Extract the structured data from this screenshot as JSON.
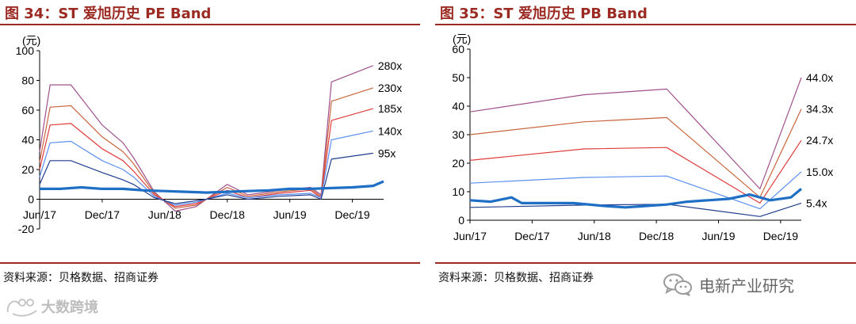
{
  "left_panel": {
    "title": "图 34：ST 爱旭历史 PE Band",
    "source": "资料来源：贝格数据、招商证券"
  },
  "right_panel": {
    "title": "图 35：ST 爱旭历史 PB Band",
    "source": "资料来源：贝格数据、招商证券"
  },
  "wechat": {
    "name": "电新产业研究",
    "icon": "wechat-logo-icon"
  },
  "watermark": {
    "text": "大数跨境",
    "icon": "watermark-logo-icon"
  },
  "colors": {
    "title": "#9b2a22",
    "price": "#1f6fc5",
    "band_dark_blue": "#1f3c8f",
    "band_light_blue": "#5b8ff0",
    "band_red": "#e03c3c",
    "band_orange": "#c8643c",
    "band_purple": "#a0508c"
  },
  "chart_data": [
    {
      "type": "line",
      "unit": "(元)",
      "ylim": [
        -20,
        100
      ],
      "yticks": [
        -20,
        0,
        20,
        40,
        60,
        80,
        100
      ],
      "xlim": [
        "2017-06",
        "2020-03"
      ],
      "xticks": [
        "Jun/17",
        "Dec/17",
        "Jun/18",
        "Dec/18",
        "Jun/19",
        "Dec/19"
      ],
      "grid": false,
      "legend": "right-end labels",
      "series": [
        {
          "name": "280x",
          "color": "#a0508c",
          "points": [
            [
              "2017-06",
              32
            ],
            [
              "2017-07",
              77
            ],
            [
              "2017-09",
              77
            ],
            [
              "2017-12",
              50
            ],
            [
              "2018-02",
              38
            ],
            [
              "2018-03",
              28
            ],
            [
              "2018-05",
              5
            ],
            [
              "2018-07",
              -8
            ],
            [
              "2018-09",
              -5
            ],
            [
              "2018-10",
              0
            ],
            [
              "2018-12",
              10
            ],
            [
              "2019-02",
              3
            ],
            [
              "2019-05",
              6
            ],
            [
              "2019-08",
              8
            ],
            [
              "2019-09",
              3
            ],
            [
              "2019-10",
              79
            ],
            [
              "2020-02",
              90
            ]
          ]
        },
        {
          "name": "230x",
          "color": "#c8643c",
          "points": [
            [
              "2017-06",
              25
            ],
            [
              "2017-07",
              62
            ],
            [
              "2017-09",
              63
            ],
            [
              "2017-12",
              42
            ],
            [
              "2018-02",
              32
            ],
            [
              "2018-03",
              24
            ],
            [
              "2018-05",
              4
            ],
            [
              "2018-07",
              -6
            ],
            [
              "2018-09",
              -4
            ],
            [
              "2018-10",
              0
            ],
            [
              "2018-12",
              8
            ],
            [
              "2019-02",
              2
            ],
            [
              "2019-05",
              5
            ],
            [
              "2019-08",
              7
            ],
            [
              "2019-09",
              2
            ],
            [
              "2019-10",
              66
            ],
            [
              "2020-02",
              75
            ]
          ]
        },
        {
          "name": "185x",
          "color": "#e03c3c",
          "points": [
            [
              "2017-06",
              20
            ],
            [
              "2017-07",
              50
            ],
            [
              "2017-09",
              51
            ],
            [
              "2017-12",
              34
            ],
            [
              "2018-02",
              26
            ],
            [
              "2018-03",
              19
            ],
            [
              "2018-05",
              3
            ],
            [
              "2018-07",
              -5
            ],
            [
              "2018-09",
              -3
            ],
            [
              "2018-10",
              0
            ],
            [
              "2018-12",
              6
            ],
            [
              "2019-02",
              1
            ],
            [
              "2019-05",
              4
            ],
            [
              "2019-08",
              6
            ],
            [
              "2019-09",
              1
            ],
            [
              "2019-10",
              53
            ],
            [
              "2020-02",
              61
            ]
          ]
        },
        {
          "name": "140x",
          "color": "#5b8ff0",
          "points": [
            [
              "2017-06",
              15
            ],
            [
              "2017-07",
              38
            ],
            [
              "2017-09",
              39
            ],
            [
              "2017-12",
              26
            ],
            [
              "2018-02",
              20
            ],
            [
              "2018-03",
              15
            ],
            [
              "2018-05",
              2
            ],
            [
              "2018-07",
              -4
            ],
            [
              "2018-09",
              -2
            ],
            [
              "2018-10",
              0
            ],
            [
              "2018-12",
              4
            ],
            [
              "2019-02",
              1
            ],
            [
              "2019-05",
              3
            ],
            [
              "2019-08",
              4
            ],
            [
              "2019-09",
              1
            ],
            [
              "2019-10",
              40
            ],
            [
              "2020-02",
              46
            ]
          ]
        },
        {
          "name": "95x",
          "color": "#1f3c8f",
          "points": [
            [
              "2017-06",
              10
            ],
            [
              "2017-07",
              26
            ],
            [
              "2017-09",
              26
            ],
            [
              "2017-12",
              18
            ],
            [
              "2018-02",
              13
            ],
            [
              "2018-03",
              10
            ],
            [
              "2018-05",
              1
            ],
            [
              "2018-07",
              -3
            ],
            [
              "2018-09",
              -1
            ],
            [
              "2018-10",
              0
            ],
            [
              "2018-12",
              3
            ],
            [
              "2019-02",
              0
            ],
            [
              "2019-05",
              2
            ],
            [
              "2019-08",
              3
            ],
            [
              "2019-09",
              0
            ],
            [
              "2019-10",
              27
            ],
            [
              "2020-02",
              31
            ]
          ]
        },
        {
          "name": "",
          "color": "#1f6fc5",
          "points": [
            [
              "2017-06",
              7
            ],
            [
              "2017-08",
              7
            ],
            [
              "2017-10",
              8
            ],
            [
              "2017-12",
              7
            ],
            [
              "2018-02",
              7
            ],
            [
              "2018-04",
              6
            ],
            [
              "2018-06",
              5.5
            ],
            [
              "2018-08",
              5
            ],
            [
              "2018-10",
              4.5
            ],
            [
              "2018-12",
              5
            ],
            [
              "2019-02",
              5.5
            ],
            [
              "2019-04",
              6
            ],
            [
              "2019-06",
              7
            ],
            [
              "2019-08",
              7
            ],
            [
              "2019-10",
              7.5
            ],
            [
              "2019-12",
              8
            ],
            [
              "2020-02",
              9
            ],
            [
              "2020-03",
              12
            ]
          ]
        }
      ]
    },
    {
      "type": "line",
      "unit": "(元)",
      "ylim": [
        0,
        60
      ],
      "yticks": [
        0,
        10,
        20,
        30,
        40,
        50,
        60
      ],
      "xlim": [
        "2017-06",
        "2020-02"
      ],
      "xticks": [
        "Jun/17",
        "Dec/17",
        "Jun/18",
        "Dec/18",
        "Jun/19",
        "Dec/19"
      ],
      "grid": false,
      "legend": "right-end labels",
      "series": [
        {
          "name": "44.0x",
          "color": "#a0508c",
          "points": [
            [
              "2017-06",
              38
            ],
            [
              "2018-05",
              44
            ],
            [
              "2019-01",
              46
            ],
            [
              "2019-10",
              11
            ],
            [
              "2020-02",
              50
            ]
          ]
        },
        {
          "name": "34.3x",
          "color": "#c8643c",
          "points": [
            [
              "2017-06",
              30
            ],
            [
              "2018-05",
              34.5
            ],
            [
              "2019-01",
              36
            ],
            [
              "2019-10",
              8
            ],
            [
              "2020-02",
              39
            ]
          ]
        },
        {
          "name": "24.7x",
          "color": "#e03c3c",
          "points": [
            [
              "2017-06",
              21
            ],
            [
              "2018-05",
              25
            ],
            [
              "2019-01",
              25.5
            ],
            [
              "2019-10",
              6
            ],
            [
              "2020-02",
              28
            ]
          ]
        },
        {
          "name": "15.0x",
          "color": "#5b8ff0",
          "points": [
            [
              "2017-06",
              13
            ],
            [
              "2018-05",
              15
            ],
            [
              "2019-01",
              15.5
            ],
            [
              "2019-10",
              4
            ],
            [
              "2020-02",
              17
            ]
          ]
        },
        {
          "name": "5.4x",
          "color": "#1f3c8f",
          "points": [
            [
              "2017-06",
              4.5
            ],
            [
              "2018-05",
              5.3
            ],
            [
              "2019-01",
              5.6
            ],
            [
              "2019-10",
              1.3
            ],
            [
              "2020-02",
              6
            ]
          ]
        },
        {
          "name": "",
          "color": "#1f6fc5",
          "points": [
            [
              "2017-06",
              7
            ],
            [
              "2017-08",
              6.5
            ],
            [
              "2017-10",
              8
            ],
            [
              "2017-11",
              6
            ],
            [
              "2018-01",
              6
            ],
            [
              "2018-04",
              6
            ],
            [
              "2018-07",
              5
            ],
            [
              "2018-09",
              4.5
            ],
            [
              "2018-11",
              5
            ],
            [
              "2019-01",
              5.5
            ],
            [
              "2019-03",
              6.5
            ],
            [
              "2019-05",
              7
            ],
            [
              "2019-07",
              7.5
            ],
            [
              "2019-09",
              9
            ],
            [
              "2019-11",
              7
            ],
            [
              "2020-01",
              8
            ],
            [
              "2020-02",
              11
            ]
          ]
        }
      ]
    }
  ]
}
